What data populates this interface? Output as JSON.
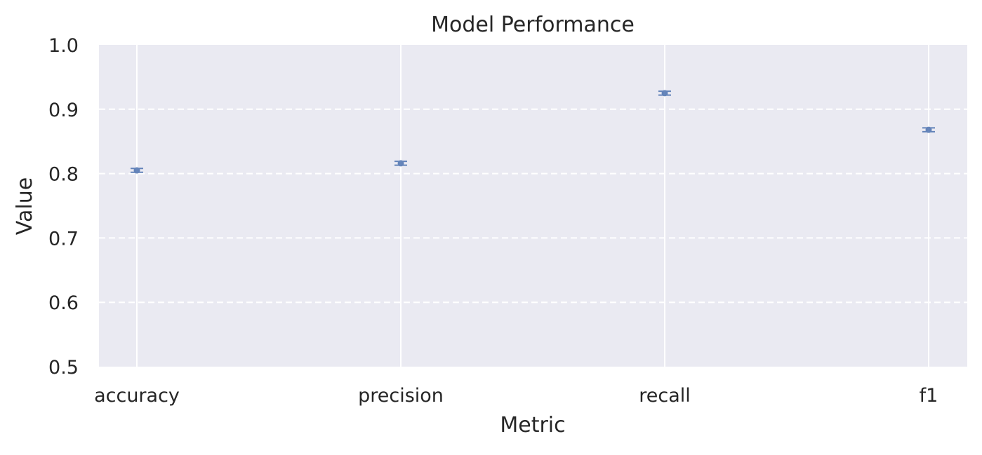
{
  "chart_data": {
    "type": "scatter",
    "title": "Model Performance",
    "xlabel": "Metric",
    "ylabel": "Value",
    "categories": [
      "accuracy",
      "precision",
      "recall",
      "f1"
    ],
    "values": [
      0.805,
      0.816,
      0.925,
      0.868
    ],
    "error": [
      0.003,
      0.003,
      0.003,
      0.003
    ],
    "ylim": [
      0.5,
      1.0
    ],
    "yticks": [
      "0.5",
      "0.6",
      "0.7",
      "0.8",
      "0.9",
      "1.0"
    ],
    "grid": true,
    "grid_style": "dashed horizontal, solid vertical",
    "colors": {
      "background": "#eaeaf2",
      "grid": "#ffffff",
      "marker": "#4c72b0",
      "text": "#262626"
    }
  }
}
